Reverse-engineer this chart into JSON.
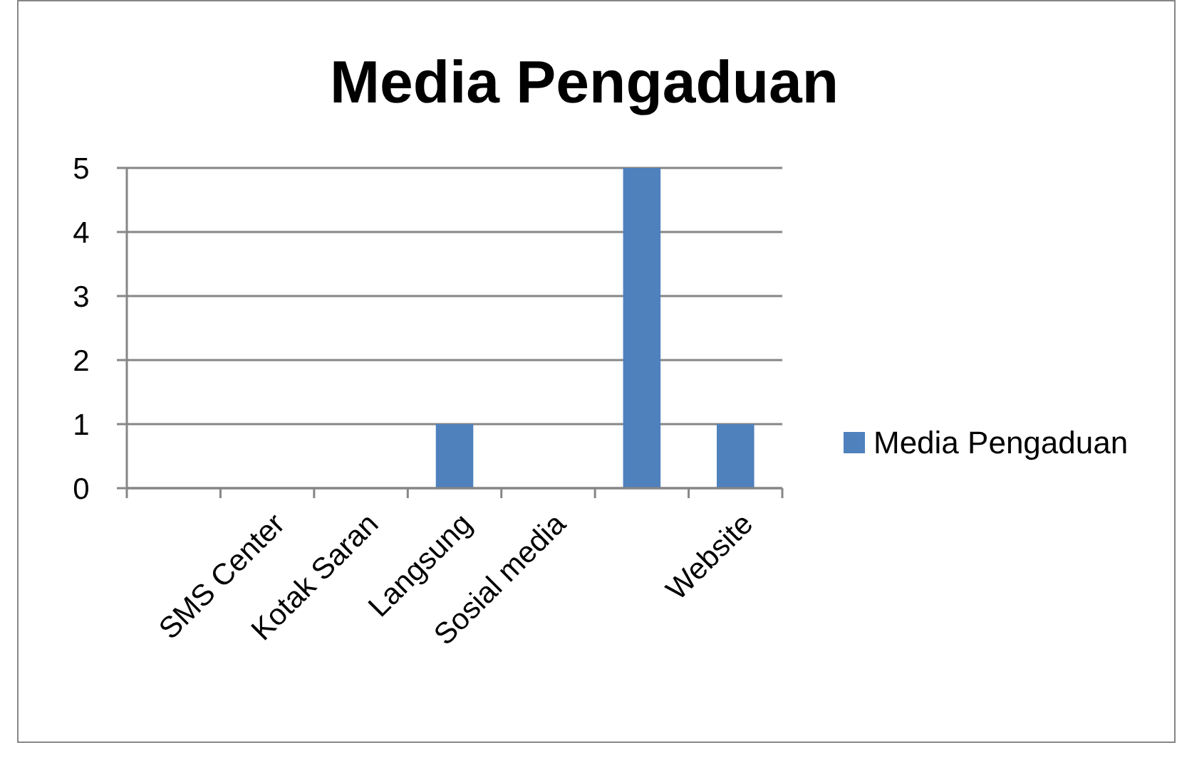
{
  "chart_data": {
    "type": "bar",
    "title": "Media Pengaduan",
    "categories": [
      null,
      "SMS Center",
      "Kotak Saran",
      "Langsung",
      "Sosial media",
      null,
      "Website"
    ],
    "series": [
      {
        "name": "Media Pengaduan",
        "color": "#4f81bd",
        "values": [
          0,
          0,
          0,
          1,
          0,
          5,
          1
        ]
      }
    ],
    "ylim": [
      0,
      5
    ],
    "yticks": [
      0,
      1,
      2,
      3,
      4,
      5
    ],
    "grid": "y",
    "legend": "right"
  }
}
